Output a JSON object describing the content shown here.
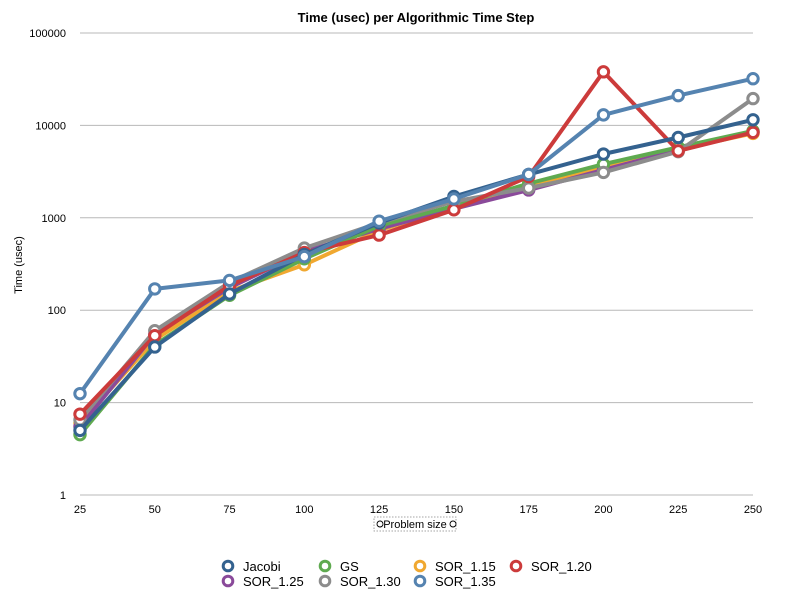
{
  "chart_data": {
    "type": "line",
    "title": "Time (usec) per Algorithmic Time Step",
    "xlabel": "Problem size",
    "ylabel": "Time (usec)",
    "y_scale": "log",
    "ylim": [
      1,
      100000
    ],
    "y_ticks": [
      "1",
      "10",
      "100",
      "1000",
      "10000",
      "100000"
    ],
    "x": [
      25,
      50,
      75,
      100,
      125,
      150,
      175,
      200,
      225,
      250
    ],
    "grid": "horizontal",
    "legend_position": "bottom",
    "series": [
      {
        "name": "SOR_1.15",
        "color": "#f0a830",
        "values": [
          6,
          48,
          160,
          310,
          730,
          1300,
          2200,
          3500,
          5500,
          8200
        ]
      },
      {
        "name": "SOR_1.25",
        "color": "#8a4a9a",
        "values": [
          5.5,
          55,
          175,
          430,
          760,
          1250,
          2000,
          3300,
          5400,
          8500
        ]
      },
      {
        "name": "GS",
        "color": "#5faa50",
        "values": [
          4.5,
          42,
          145,
          360,
          820,
          1350,
          2350,
          3800,
          5800,
          8700
        ]
      },
      {
        "name": "SOR_1.30",
        "color": "#8c8c8c",
        "values": [
          6.5,
          60,
          200,
          470,
          880,
          1500,
          2100,
          3100,
          5200,
          19500
        ]
      },
      {
        "name": "SOR_1.20",
        "color": "#cc3b3b",
        "values": [
          7.5,
          53,
          185,
          420,
          650,
          1220,
          2800,
          38000,
          5300,
          8400
        ]
      },
      {
        "name": "Jacobi",
        "color": "#34628f",
        "values": [
          5,
          40,
          150,
          400,
          880,
          1700,
          2950,
          4900,
          7400,
          11500
        ]
      },
      {
        "name": "SOR_1.35",
        "color": "#5583b0",
        "values": [
          12.5,
          170,
          210,
          380,
          920,
          1600,
          2950,
          13000,
          21000,
          32000
        ]
      }
    ]
  },
  "legend": {
    "row1": [
      {
        "name": "Jacobi",
        "color": "#34628f"
      },
      {
        "name": "GS",
        "color": "#5faa50"
      },
      {
        "name": "SOR_1.15",
        "color": "#f0a830"
      },
      {
        "name": "SOR_1.20",
        "color": "#cc3b3b"
      }
    ],
    "row2": [
      {
        "name": "SOR_1.25",
        "color": "#8a4a9a"
      },
      {
        "name": "SOR_1.30",
        "color": "#8c8c8c"
      },
      {
        "name": "SOR_1.35",
        "color": "#5583b0"
      }
    ]
  }
}
